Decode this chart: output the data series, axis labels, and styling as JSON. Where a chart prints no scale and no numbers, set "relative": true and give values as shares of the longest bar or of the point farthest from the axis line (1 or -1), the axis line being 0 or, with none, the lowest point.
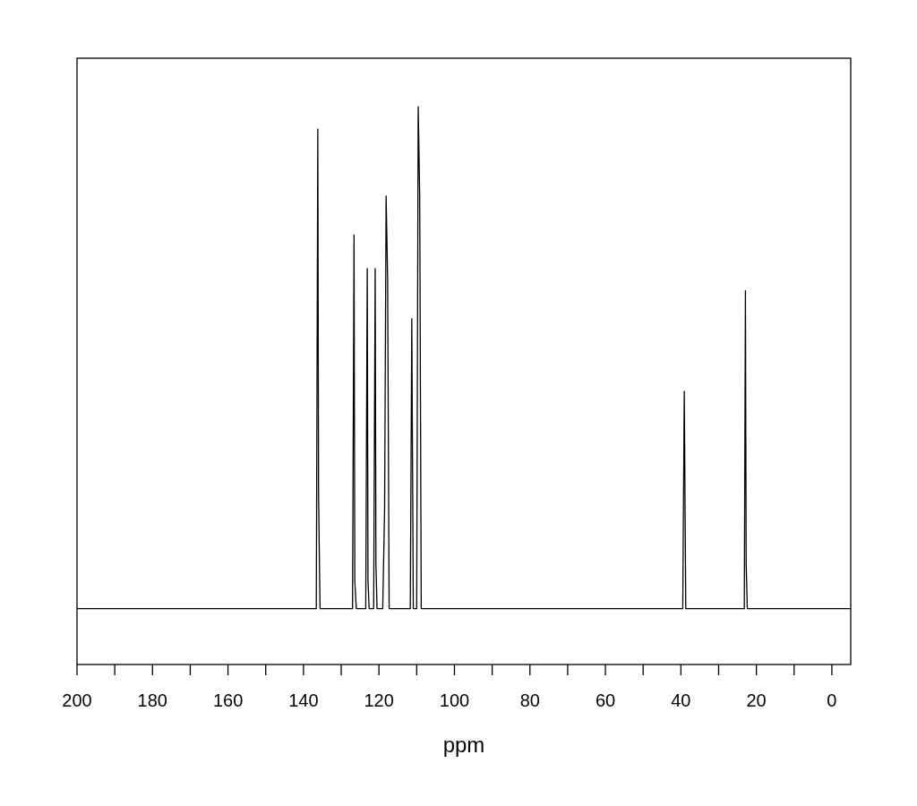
{
  "chart_data": {
    "type": "line",
    "relative": true,
    "xlabel": "ppm",
    "xlim": [
      200,
      -5
    ],
    "xticks": [
      200,
      {
        "value": 190,
        "label": null
      },
      180,
      {
        "value": 170,
        "label": null
      },
      160,
      {
        "value": 150,
        "label": null
      },
      140,
      {
        "value": 130,
        "label": null
      },
      120,
      {
        "value": 110,
        "label": null
      },
      100,
      {
        "value": 90,
        "label": null
      },
      80,
      {
        "value": 70,
        "label": null
      },
      60,
      {
        "value": 50,
        "label": null
      },
      40,
      {
        "value": 30,
        "label": null
      },
      20,
      {
        "value": 10,
        "label": null
      },
      0
    ],
    "grid": false,
    "marker": "none",
    "tick_labels": "x",
    "series": [
      {
        "color": "#000000",
        "x": [
          200,
          136.6,
          136.2,
          136.0,
          135.6,
          127.0,
          126.6,
          126.4,
          126.0,
          123.5,
          123.1,
          122.9,
          122.6,
          121.4,
          121.0,
          120.8,
          120.5,
          119.0,
          118.5,
          118.1,
          117.7,
          117.3,
          111.7,
          111.3,
          110.9,
          110.0,
          109.6,
          109.2,
          108.8,
          39.5,
          39.1,
          38.7,
          23.2,
          22.9,
          22.7,
          22.4,
          -5
        ],
        "values": [
          0.1,
          0.1,
          0.96,
          0.3,
          0.1,
          0.1,
          0.77,
          0.15,
          0.1,
          0.1,
          0.71,
          0.15,
          0.1,
          0.1,
          0.71,
          0.18,
          0.1,
          0.1,
          0.28,
          0.84,
          0.69,
          0.1,
          0.1,
          0.62,
          0.1,
          0.1,
          1,
          0.84,
          0.1,
          0.1,
          0.49,
          0.1,
          0.1,
          0.67,
          0.18,
          0.1,
          0.1
        ]
      }
    ]
  }
}
